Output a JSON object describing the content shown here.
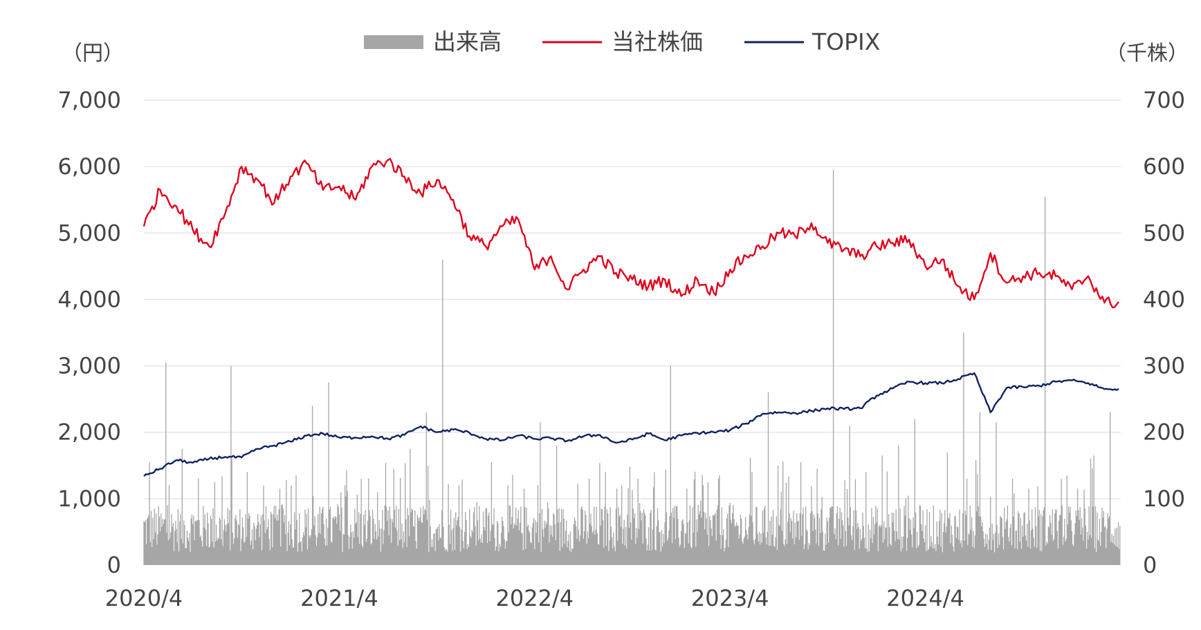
{
  "chart_data": {
    "type": "line",
    "title": "",
    "left_axis": {
      "unit_label": "（円）",
      "ylim": [
        0,
        7000
      ],
      "ticks": [
        "0",
        "1,000",
        "2,000",
        "3,000",
        "4,000",
        "5,000",
        "6,000",
        "7,000"
      ]
    },
    "right_axis": {
      "unit_label": "（千株）",
      "ylim": [
        0,
        700
      ],
      "ticks": [
        "0",
        "100",
        "200",
        "300",
        "400",
        "500",
        "600",
        "700"
      ]
    },
    "x_axis": {
      "range": [
        "2020-04",
        "2025-03"
      ],
      "tick_labels": [
        "2020/4",
        "2021/4",
        "2022/4",
        "2023/4",
        "2024/4"
      ]
    },
    "grid": "horizontal",
    "legend": {
      "position": "top-center",
      "entries": [
        "出来高",
        "当社株価",
        "TOPIX"
      ]
    },
    "colors": {
      "volume": "#a6a6a6",
      "stock": "#e0001b",
      "topix": "#0f2160",
      "grid": "#e6e6e6",
      "text": "#444444"
    },
    "series": [
      {
        "name": "当社株価",
        "axis": "left",
        "kind": "line",
        "points": [
          [
            "2020-04",
            5100
          ],
          [
            "2020-05",
            5650
          ],
          [
            "2020-06",
            5400
          ],
          [
            "2020-07",
            5050
          ],
          [
            "2020-08",
            4800
          ],
          [
            "2020-09",
            5300
          ],
          [
            "2020-10",
            6000
          ],
          [
            "2020-11",
            5800
          ],
          [
            "2020-12",
            5450
          ],
          [
            "2021-01",
            5850
          ],
          [
            "2021-02",
            6050
          ],
          [
            "2021-03",
            5650
          ],
          [
            "2021-04",
            5700
          ],
          [
            "2021-05",
            5500
          ],
          [
            "2021-06",
            6000
          ],
          [
            "2021-07",
            6100
          ],
          [
            "2021-08",
            5850
          ],
          [
            "2021-09",
            5600
          ],
          [
            "2021-10",
            5800
          ],
          [
            "2021-11",
            5500
          ],
          [
            "2021-12",
            4950
          ],
          [
            "2022-01",
            4800
          ],
          [
            "2022-02",
            5100
          ],
          [
            "2022-03",
            5200
          ],
          [
            "2022-04",
            4450
          ],
          [
            "2022-05",
            4650
          ],
          [
            "2022-06",
            4150
          ],
          [
            "2022-07",
            4450
          ],
          [
            "2022-08",
            4650
          ],
          [
            "2022-09",
            4400
          ],
          [
            "2022-10",
            4300
          ],
          [
            "2022-11",
            4200
          ],
          [
            "2022-12",
            4300
          ],
          [
            "2023-01",
            4050
          ],
          [
            "2023-02",
            4300
          ],
          [
            "2023-03",
            4100
          ],
          [
            "2023-04",
            4450
          ],
          [
            "2023-05",
            4650
          ],
          [
            "2023-06",
            4800
          ],
          [
            "2023-07",
            5000
          ],
          [
            "2023-08",
            4950
          ],
          [
            "2023-09",
            5150
          ],
          [
            "2023-10",
            4850
          ],
          [
            "2023-11",
            4750
          ],
          [
            "2023-12",
            4650
          ],
          [
            "2024-01",
            4800
          ],
          [
            "2024-02",
            4850
          ],
          [
            "2024-03",
            4900
          ],
          [
            "2024-04",
            4500
          ],
          [
            "2024-05",
            4600
          ],
          [
            "2024-06",
            4200
          ],
          [
            "2024-07",
            4000
          ],
          [
            "2024-08",
            4700
          ],
          [
            "2024-09",
            4250
          ],
          [
            "2024-10",
            4350
          ],
          [
            "2024-11",
            4400
          ],
          [
            "2024-12",
            4350
          ],
          [
            "2025-01",
            4150
          ],
          [
            "2025-02",
            4350
          ],
          [
            "2025-03",
            3950
          ]
        ]
      },
      {
        "name": "TOPIX",
        "axis": "left",
        "kind": "line",
        "points": [
          [
            "2020-04",
            1340
          ],
          [
            "2020-05",
            1450
          ],
          [
            "2020-06",
            1580
          ],
          [
            "2020-07",
            1540
          ],
          [
            "2020-08",
            1600
          ],
          [
            "2020-09",
            1630
          ],
          [
            "2020-10",
            1620
          ],
          [
            "2020-11",
            1750
          ],
          [
            "2020-12",
            1800
          ],
          [
            "2021-01",
            1860
          ],
          [
            "2021-02",
            1950
          ],
          [
            "2021-03",
            1980
          ],
          [
            "2021-04",
            1920
          ],
          [
            "2021-05",
            1920
          ],
          [
            "2021-06",
            1940
          ],
          [
            "2021-07",
            1900
          ],
          [
            "2021-08",
            1960
          ],
          [
            "2021-09",
            2090
          ],
          [
            "2021-10",
            2000
          ],
          [
            "2021-11",
            2040
          ],
          [
            "2021-12",
            1990
          ],
          [
            "2022-01",
            1900
          ],
          [
            "2022-02",
            1880
          ],
          [
            "2022-03",
            1950
          ],
          [
            "2022-04",
            1900
          ],
          [
            "2022-05",
            1910
          ],
          [
            "2022-06",
            1870
          ],
          [
            "2022-07",
            1940
          ],
          [
            "2022-08",
            1960
          ],
          [
            "2022-09",
            1840
          ],
          [
            "2022-10",
            1890
          ],
          [
            "2022-11",
            1980
          ],
          [
            "2022-12",
            1880
          ],
          [
            "2023-01",
            1950
          ],
          [
            "2023-02",
            1990
          ],
          [
            "2023-03",
            2000
          ],
          [
            "2023-04",
            2030
          ],
          [
            "2023-05",
            2130
          ],
          [
            "2023-06",
            2280
          ],
          [
            "2023-07",
            2300
          ],
          [
            "2023-08",
            2290
          ],
          [
            "2023-09",
            2320
          ],
          [
            "2023-10",
            2360
          ],
          [
            "2023-11",
            2350
          ],
          [
            "2023-12",
            2360
          ],
          [
            "2024-01",
            2550
          ],
          [
            "2024-02",
            2660
          ],
          [
            "2024-03",
            2760
          ],
          [
            "2024-04",
            2740
          ],
          [
            "2024-05",
            2740
          ],
          [
            "2024-06",
            2800
          ],
          [
            "2024-07",
            2890
          ],
          [
            "2024-08",
            2300
          ],
          [
            "2024-09",
            2670
          ],
          [
            "2024-10",
            2680
          ],
          [
            "2024-11",
            2700
          ],
          [
            "2024-12",
            2760
          ],
          [
            "2025-01",
            2780
          ],
          [
            "2025-02",
            2740
          ],
          [
            "2025-03",
            2650
          ]
        ]
      },
      {
        "name": "出来高",
        "axis": "right",
        "kind": "bar",
        "base_level": 55,
        "spikes": [
          [
            "2020-04",
            155
          ],
          [
            "2020-05",
            305
          ],
          [
            "2020-06",
            175
          ],
          [
            "2020-07",
            130
          ],
          [
            "2020-08",
            125
          ],
          [
            "2020-09",
            300
          ],
          [
            "2020-10",
            140
          ],
          [
            "2020-11",
            120
          ],
          [
            "2020-12",
            115
          ],
          [
            "2021-01",
            135
          ],
          [
            "2021-02",
            240
          ],
          [
            "2021-03",
            275
          ],
          [
            "2021-04",
            120
          ],
          [
            "2021-05",
            130
          ],
          [
            "2021-06",
            110
          ],
          [
            "2021-07",
            145
          ],
          [
            "2021-08",
            175
          ],
          [
            "2021-09",
            230
          ],
          [
            "2021-10",
            460
          ],
          [
            "2021-11",
            120
          ],
          [
            "2022-01",
            155
          ],
          [
            "2022-02",
            120
          ],
          [
            "2022-03",
            115
          ],
          [
            "2022-04",
            215
          ],
          [
            "2022-05",
            180
          ],
          [
            "2022-07",
            130
          ],
          [
            "2022-08",
            140
          ],
          [
            "2022-09",
            120
          ],
          [
            "2022-10",
            130
          ],
          [
            "2022-11",
            140
          ],
          [
            "2022-12",
            300
          ],
          [
            "2023-01",
            115
          ],
          [
            "2023-02",
            120
          ],
          [
            "2023-03",
            135
          ],
          [
            "2023-05",
            140
          ],
          [
            "2023-06",
            260
          ],
          [
            "2023-08",
            155
          ],
          [
            "2023-09",
            145
          ],
          [
            "2023-10",
            595
          ],
          [
            "2023-11",
            210
          ],
          [
            "2023-12",
            140
          ],
          [
            "2024-01",
            165
          ],
          [
            "2024-02",
            180
          ],
          [
            "2024-03",
            220
          ],
          [
            "2024-05",
            170
          ],
          [
            "2024-06",
            350
          ],
          [
            "2024-07",
            230
          ],
          [
            "2024-08",
            215
          ],
          [
            "2024-09",
            130
          ],
          [
            "2024-10",
            115
          ],
          [
            "2024-11",
            555
          ],
          [
            "2024-12",
            130
          ],
          [
            "2025-01",
            115
          ],
          [
            "2025-02",
            165
          ],
          [
            "2025-03",
            230
          ]
        ]
      }
    ]
  }
}
